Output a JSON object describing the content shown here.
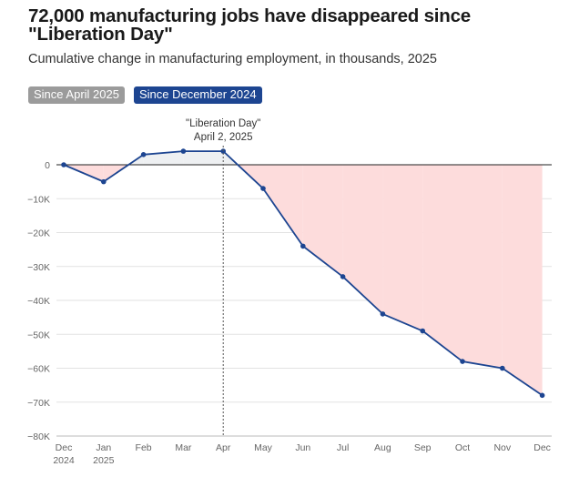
{
  "header": {
    "title": "72,000 manufacturing jobs have disappeared since \"Liberation Day\"",
    "subtitle": "Cumulative change in manufacturing employment, in thousands, 2025"
  },
  "tabs": [
    {
      "label": "Since April 2025",
      "active": false
    },
    {
      "label": "Since December 2024",
      "active": true
    }
  ],
  "annotation": {
    "line1": "\"Liberation Day\"",
    "line2": "April 2, 2025"
  },
  "colors": {
    "line": "#1d4591",
    "negative_fill": "#fddcdc",
    "positive_fill": "#eef0f2",
    "active_tab": "#1d4591",
    "inactive_tab": "#9b9b9b"
  },
  "chart_data": {
    "type": "area",
    "title": "Cumulative change in manufacturing employment, in thousands, 2025",
    "categories": [
      "Dec 2024",
      "Jan 2025",
      "Feb",
      "Mar",
      "Apr",
      "May",
      "Jun",
      "Jul",
      "Aug",
      "Sep",
      "Oct",
      "Nov",
      "Dec"
    ],
    "x_tick_labels": [
      [
        "Dec",
        "2024"
      ],
      [
        "Jan",
        "2025"
      ],
      [
        "Feb"
      ],
      [
        "Mar"
      ],
      [
        "Apr"
      ],
      [
        "May"
      ],
      [
        "Jun"
      ],
      [
        "Jul"
      ],
      [
        "Aug"
      ],
      [
        "Sep"
      ],
      [
        "Oct"
      ],
      [
        "Nov"
      ],
      [
        "Dec"
      ]
    ],
    "series": [
      {
        "name": "Cumulative change in manufacturing employment (thousands)",
        "values": [
          0,
          -5,
          3,
          4,
          4,
          -7,
          -24,
          -33,
          -44,
          -49,
          -58,
          -60,
          -68
        ]
      }
    ],
    "ylim": [
      -80,
      0
    ],
    "y_ticks": [
      0,
      -10,
      -20,
      -30,
      -40,
      -50,
      -60,
      -70,
      -80
    ],
    "y_tick_labels": [
      "0",
      "−10K",
      "−20K",
      "−30K",
      "−40K",
      "−50K",
      "−60K",
      "−70K",
      "−80K"
    ],
    "reference_index": 4,
    "grid": true,
    "xlabel": "",
    "ylabel": ""
  }
}
